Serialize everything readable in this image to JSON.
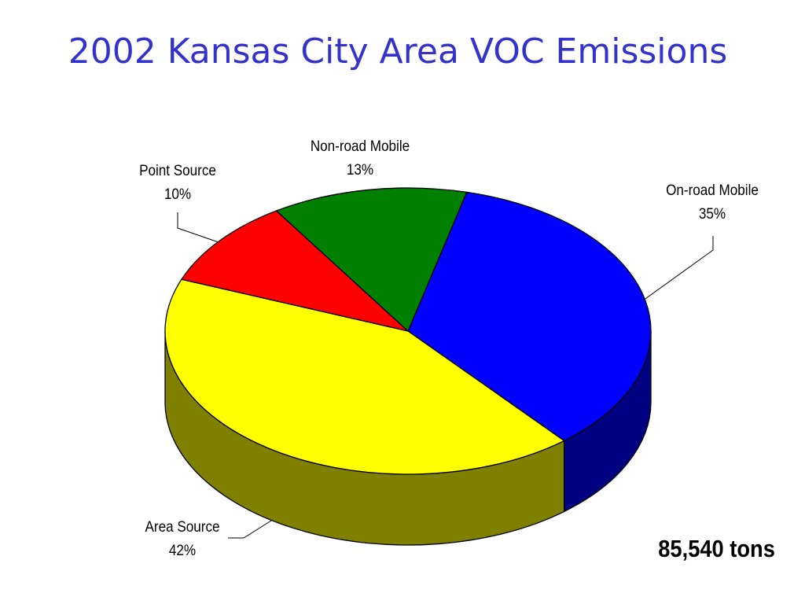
{
  "title": "2002 Kansas City Area VOC Emissions",
  "total_label": "85,540 tons",
  "chart_data": {
    "type": "pie",
    "title": "2002 Kansas City Area VOC Emissions",
    "unit": "%",
    "slices": [
      {
        "name": "On-road Mobile",
        "value": 35,
        "label": "35%",
        "color": "#0000ff",
        "side_color": "#000080"
      },
      {
        "name": "Area Source",
        "value": 42,
        "label": "42%",
        "color": "#ffff00",
        "side_color": "#808000"
      },
      {
        "name": "Point Source",
        "value": 10,
        "label": "10%",
        "color": "#ff0000",
        "side_color": "#800000"
      },
      {
        "name": "Non-road Mobile",
        "value": 13,
        "label": "13%",
        "color": "#008000",
        "side_color": "#004000"
      }
    ],
    "annotation": "85,540 tons"
  }
}
